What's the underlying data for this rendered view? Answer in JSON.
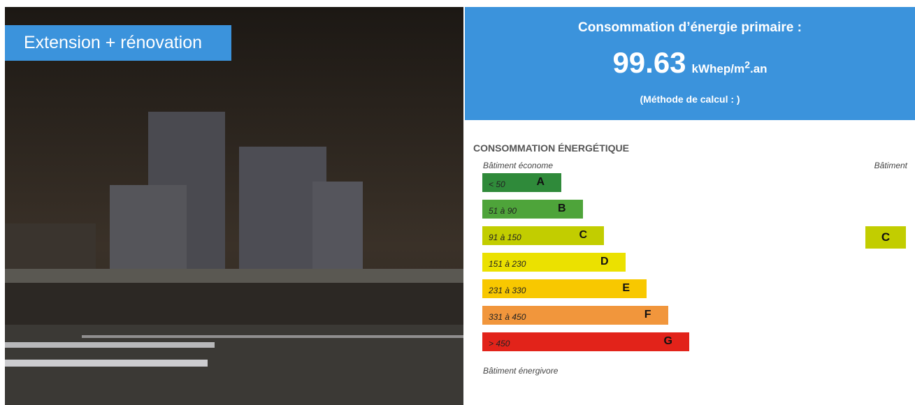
{
  "photo_tag": "Extension + rénovation",
  "header": {
    "title": "Consommation d’énergie primaire :",
    "value": "99.63",
    "unit_prefix": "kWhep/m",
    "unit_sup": "2",
    "unit_suffix": ".an",
    "method": "(Méthode de calcul : )"
  },
  "scale": {
    "title": "CONSOMMATION ÉNERGÉTIQUE",
    "top_label": "Bâtiment économe",
    "right_label": "Bâtiment",
    "bottom_label": "Bâtiment énergivore",
    "classes": [
      {
        "range": "< 50",
        "letter": "A",
        "color": "#2f8a3a"
      },
      {
        "range": "51 à 90",
        "letter": "B",
        "color": "#4ea43a"
      },
      {
        "range": "91 à 150",
        "letter": "C",
        "color": "#c2cd00"
      },
      {
        "range": "151 à 230",
        "letter": "D",
        "color": "#ebe100"
      },
      {
        "range": "231 à 330",
        "letter": "E",
        "color": "#f8c800"
      },
      {
        "range": "331 à 450",
        "letter": "F",
        "color": "#f1963c"
      },
      {
        "range": "> 450",
        "letter": "G",
        "color": "#e2231a"
      }
    ],
    "building_class": "C"
  }
}
